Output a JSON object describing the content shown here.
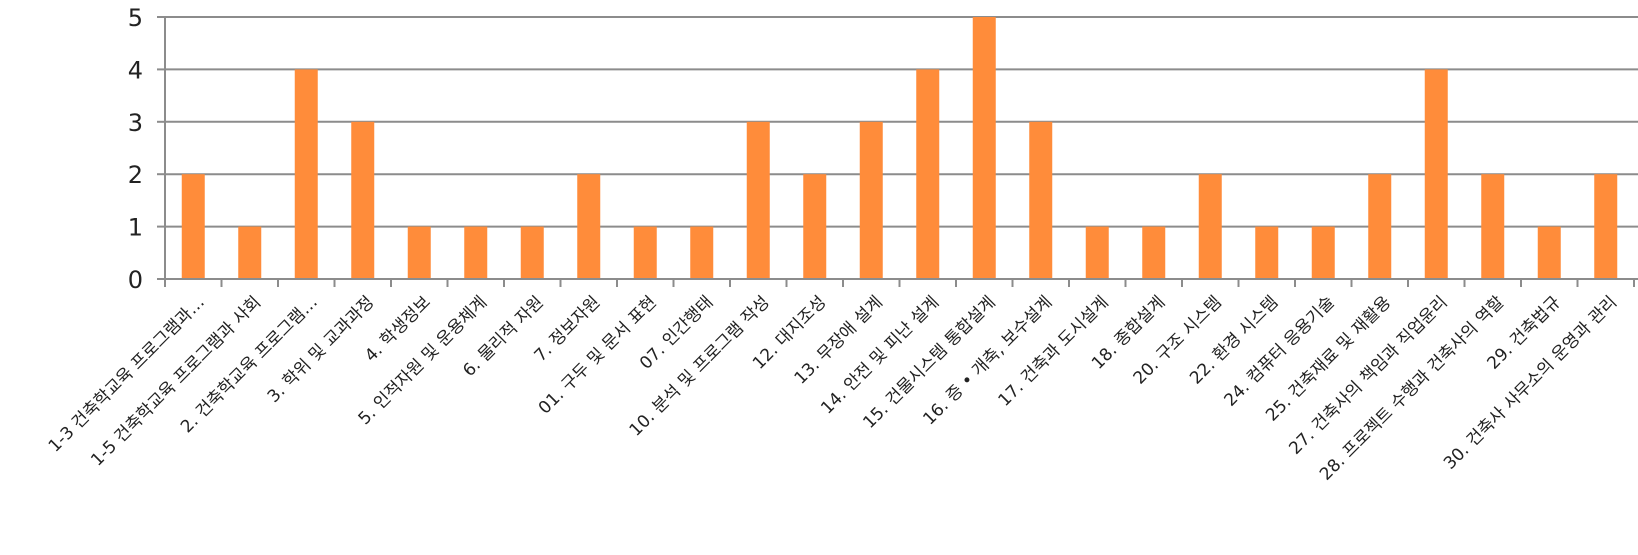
{
  "chart_data": {
    "type": "bar",
    "title": "",
    "xlabel": "",
    "ylabel": "",
    "ylim": [
      0,
      5
    ],
    "yticks": [
      0,
      1,
      2,
      3,
      4,
      5
    ],
    "grid": true,
    "bar_color": "#FF8C3A",
    "categories": [
      "1-3 건축학교육 프로그램과…",
      "1-5 건축학교육 프로그램과 사회",
      "2. 건축학교육 프로그램…",
      "3. 학위 및 교과과정",
      "4. 학생정보",
      "5. 인적자원 및 운용체계",
      "6. 물리적 자원",
      "7. 정보자원",
      "01. 구두 및 문서 표현",
      "07. 인간행태",
      "10. 분석 및 프로그램 작성",
      "12. 대지조성",
      "13. 무장애 설계",
      "14. 안전 및 피난 설계",
      "15. 건물시스템 통합설계",
      "16. 증 • 개축, 보수설계",
      "17. 건축과 도시설계",
      "18. 종합설계",
      "20. 구조 시스템",
      "22. 환경 시스템",
      "24. 컴퓨터 응용기술",
      "25. 건축재료 및 재활용",
      "27. 건축사의 책임과 직업윤리",
      "28. 프로젝트 수행과 건축사의 역할",
      "29. 건축법규",
      "30. 건축사 사무소의 운영과 관리"
    ],
    "values": [
      2,
      1,
      4,
      3,
      1,
      1,
      1,
      2,
      1,
      1,
      3,
      2,
      3,
      4,
      5,
      3,
      1,
      1,
      2,
      1,
      1,
      2,
      4,
      2,
      1,
      2
    ]
  }
}
